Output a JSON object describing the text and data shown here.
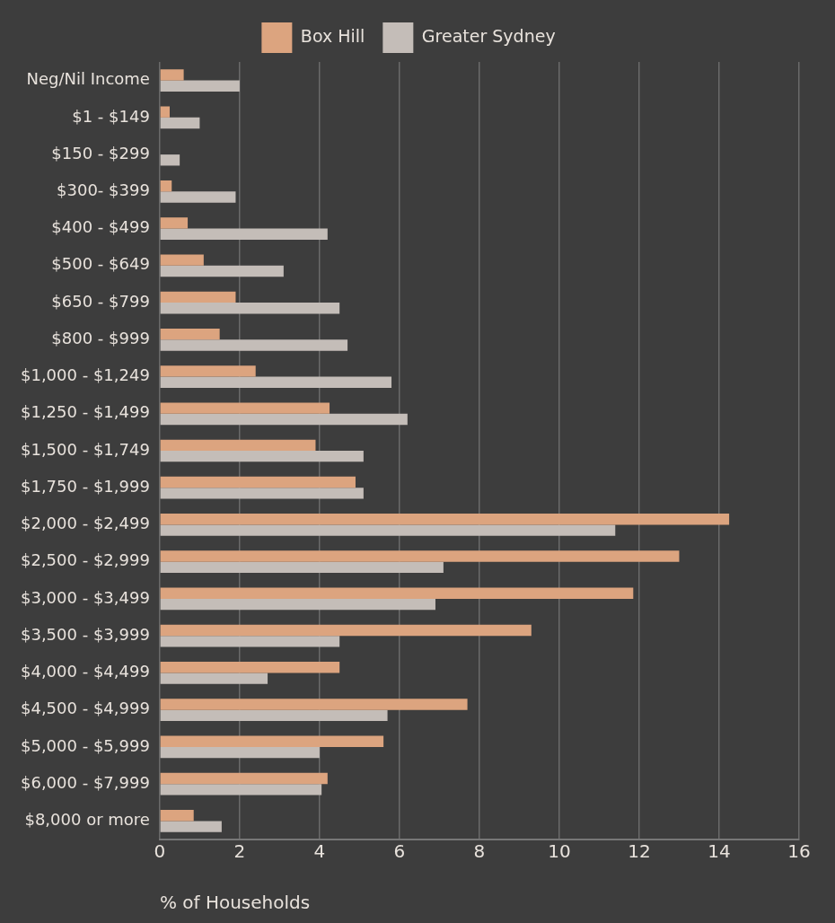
{
  "chart_data": {
    "type": "bar",
    "orientation": "horizontal",
    "xlabel": "% of Households",
    "categories": [
      "Neg/Nil Income",
      "$1 - $149",
      "$150 - $299",
      "$300- $399",
      "$400 - $499",
      "$500 - $649",
      "$650 - $799",
      "$800 - $999",
      "$1,000 - $1,249",
      "$1,250 - $1,499",
      "$1,500 - $1,749",
      "$1,750 - $1,999",
      "$2,000 - $2,499",
      "$2,500 - $2,999",
      "$3,000 - $3,499",
      "$3,500 - $3,999",
      "$4,000 - $4,499",
      "$4,500 - $4,999",
      "$5,000 - $5,999",
      "$6,000 - $7,999",
      "$8,000 or more"
    ],
    "series": [
      {
        "name": "Box Hill",
        "color": "#dca47f",
        "values": [
          0.6,
          0.25,
          0,
          0.3,
          0.7,
          1.1,
          1.9,
          1.5,
          2.4,
          4.25,
          3.9,
          4.9,
          14.25,
          13.0,
          11.85,
          9.3,
          4.5,
          7.7,
          5.6,
          4.2,
          0.85
        ]
      },
      {
        "name": "Greater Sydney",
        "color": "#c4bdb8",
        "values": [
          2.0,
          1.0,
          0.5,
          1.9,
          4.2,
          3.1,
          4.5,
          4.7,
          5.8,
          6.2,
          5.1,
          5.1,
          11.4,
          7.1,
          6.9,
          4.5,
          2.7,
          5.7,
          4.0,
          4.05,
          1.55
        ]
      }
    ],
    "xlim": [
      0,
      16
    ],
    "xticks": [
      0,
      2,
      4,
      6,
      8,
      10,
      12,
      14,
      16
    ],
    "grid": "x",
    "legend": "top"
  }
}
